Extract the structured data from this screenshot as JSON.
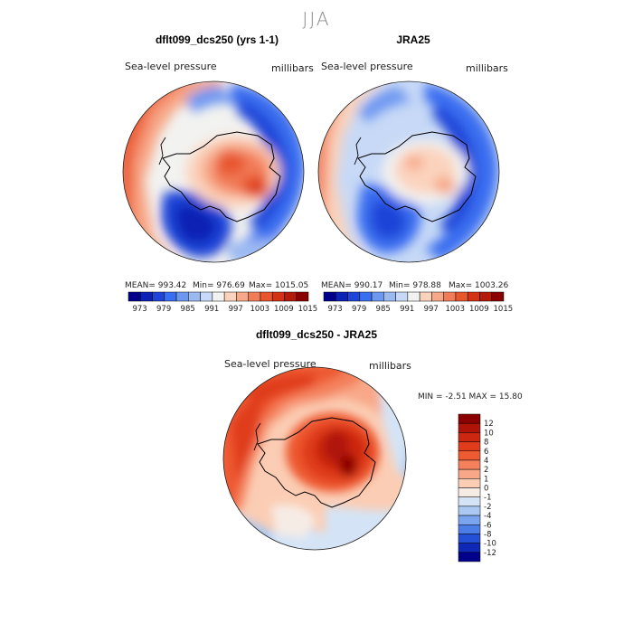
{
  "figure": {
    "season": "JJA"
  },
  "chart_data": [
    {
      "type": "heatmap",
      "title": "dflt099_dcs250 (yrs 1-1)",
      "variable": "Sea-level pressure",
      "units": "millibars",
      "projection": "south-polar",
      "stats": {
        "mean": "MEAN= 993.42",
        "min": "Min= 976.69",
        "max": "Max= 1015.05"
      },
      "colorbar": {
        "orientation": "horizontal",
        "ticks": [
          "973",
          "979",
          "985",
          "991",
          "997",
          "1003",
          "1009",
          "1015"
        ],
        "colors": [
          "#00008b",
          "#0c22b4",
          "#1f45d8",
          "#3a6ef0",
          "#6e98f0",
          "#9bbaf2",
          "#c7d9f6",
          "#f2f2f0",
          "#fbd3bd",
          "#f7a888",
          "#f27c58",
          "#e8562d",
          "#d33314",
          "#b31a0a",
          "#8b0000"
        ]
      }
    },
    {
      "type": "heatmap",
      "title": "JRA25",
      "variable": "Sea-level pressure",
      "units": "millibars",
      "projection": "south-polar",
      "stats": {
        "mean": "MEAN= 990.17",
        "min": "Min= 978.88",
        "max": "Max= 1003.26"
      },
      "colorbar": {
        "orientation": "horizontal",
        "ticks": [
          "973",
          "979",
          "985",
          "991",
          "997",
          "1003",
          "1009",
          "1015"
        ],
        "colors": [
          "#00008b",
          "#0c22b4",
          "#1f45d8",
          "#3a6ef0",
          "#6e98f0",
          "#9bbaf2",
          "#c7d9f6",
          "#f2f2f0",
          "#fbd3bd",
          "#f7a888",
          "#f27c58",
          "#e8562d",
          "#d33314",
          "#b31a0a",
          "#8b0000"
        ]
      }
    },
    {
      "type": "heatmap",
      "title": "dflt099_dcs250 - JRA25",
      "variable": "Sea-level pressure",
      "units": "millibars",
      "projection": "south-polar",
      "stats": {
        "minmax": "MIN = -2.51 MAX = 15.80"
      },
      "colorbar": {
        "orientation": "vertical",
        "ticks": [
          "12",
          "10",
          "8",
          "6",
          "4",
          "2",
          "1",
          "0",
          "-1",
          "-2",
          "-4",
          "-6",
          "-8",
          "-10",
          "-12"
        ],
        "colors": [
          "#8b0000",
          "#b01408",
          "#cc2710",
          "#e03c1c",
          "#ee5a32",
          "#f4805c",
          "#f8a888",
          "#fbcdb4",
          "#f6ece6",
          "#d4e4f6",
          "#aac8f2",
          "#7aa4ee",
          "#4c7ce6",
          "#2450d8",
          "#1028b8",
          "#00008b"
        ]
      }
    }
  ]
}
